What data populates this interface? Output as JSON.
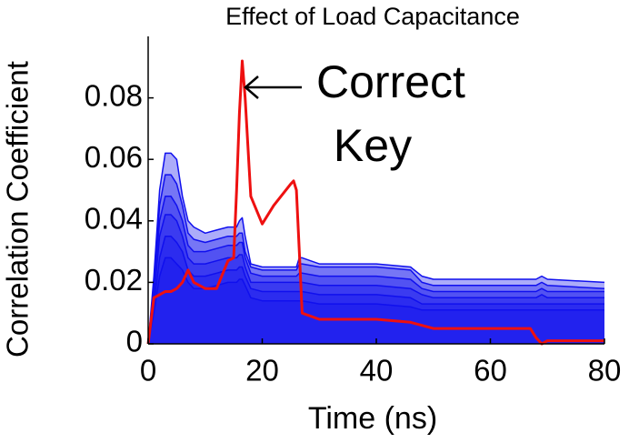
{
  "chart_data": {
    "type": "line",
    "title": "Effect of Load Capacitance",
    "x_label": "Time (ns)",
    "y_label": "Correlation Coefficient",
    "annotation": [
      "Correct",
      "Key"
    ],
    "x": [
      0,
      1,
      2,
      3,
      4,
      5,
      6,
      7,
      8,
      10,
      12,
      14,
      15,
      15.5,
      16,
      16.5,
      17,
      18,
      20,
      22,
      25,
      25.5,
      26,
      26.5,
      27,
      30,
      40,
      46,
      48,
      50,
      60,
      67,
      68,
      69,
      70,
      80
    ],
    "fill_under": true,
    "series": [
      {
        "color": "#1010ee",
        "values": [
          0,
          0.022,
          0.05,
          0.062,
          0.062,
          0.06,
          0.048,
          0.04,
          0.038,
          0.036,
          0.037,
          0.038,
          0.038,
          0.038,
          0.04,
          0.041,
          0.035,
          0.026,
          0.025,
          0.025,
          0.025,
          0.025,
          0.025,
          0.028,
          0.028,
          0.026,
          0.026,
          0.025,
          0.022,
          0.021,
          0.021,
          0.021,
          0.021,
          0.022,
          0.021,
          0.02
        ]
      },
      {
        "color": "#1010ee",
        "values": [
          0,
          0.02,
          0.045,
          0.055,
          0.055,
          0.052,
          0.045,
          0.036,
          0.034,
          0.033,
          0.034,
          0.035,
          0.035,
          0.035,
          0.036,
          0.036,
          0.03,
          0.025,
          0.024,
          0.024,
          0.024,
          0.024,
          0.024,
          0.026,
          0.026,
          0.025,
          0.025,
          0.024,
          0.02,
          0.019,
          0.019,
          0.019,
          0.019,
          0.02,
          0.019,
          0.018
        ]
      },
      {
        "color": "#1010ee",
        "values": [
          0,
          0.018,
          0.04,
          0.048,
          0.048,
          0.045,
          0.04,
          0.032,
          0.03,
          0.03,
          0.031,
          0.032,
          0.032,
          0.032,
          0.033,
          0.033,
          0.028,
          0.023,
          0.022,
          0.022,
          0.022,
          0.022,
          0.022,
          0.023,
          0.023,
          0.022,
          0.022,
          0.021,
          0.018,
          0.017,
          0.017,
          0.017,
          0.017,
          0.018,
          0.017,
          0.017
        ]
      },
      {
        "color": "#1010ee",
        "values": [
          0,
          0.015,
          0.035,
          0.042,
          0.042,
          0.04,
          0.035,
          0.028,
          0.026,
          0.026,
          0.027,
          0.028,
          0.028,
          0.028,
          0.029,
          0.029,
          0.025,
          0.02,
          0.02,
          0.02,
          0.02,
          0.02,
          0.02,
          0.02,
          0.02,
          0.019,
          0.019,
          0.018,
          0.016,
          0.015,
          0.015,
          0.015,
          0.015,
          0.016,
          0.015,
          0.015
        ]
      },
      {
        "color": "#1010ee",
        "values": [
          0,
          0.012,
          0.028,
          0.035,
          0.035,
          0.033,
          0.03,
          0.024,
          0.022,
          0.022,
          0.023,
          0.024,
          0.024,
          0.024,
          0.025,
          0.025,
          0.022,
          0.018,
          0.017,
          0.017,
          0.017,
          0.017,
          0.017,
          0.017,
          0.017,
          0.016,
          0.016,
          0.015,
          0.013,
          0.013,
          0.013,
          0.013,
          0.013,
          0.013,
          0.013,
          0.013
        ]
      },
      {
        "color": "#1010ee",
        "values": [
          0,
          0.01,
          0.022,
          0.028,
          0.028,
          0.026,
          0.024,
          0.02,
          0.018,
          0.018,
          0.019,
          0.02,
          0.02,
          0.02,
          0.021,
          0.021,
          0.019,
          0.015,
          0.014,
          0.014,
          0.014,
          0.014,
          0.014,
          0.014,
          0.014,
          0.013,
          0.013,
          0.012,
          0.011,
          0.011,
          0.011,
          0.011,
          0.011,
          0.011,
          0.011,
          0.011
        ]
      },
      {
        "color": "#ee1010",
        "values": [
          0,
          0.015,
          0.016,
          0.017,
          0.017,
          0.018,
          0.02,
          0.024,
          0.02,
          0.018,
          0.018,
          0.027,
          0.028,
          0.05,
          0.075,
          0.092,
          0.08,
          0.048,
          0.039,
          0.045,
          0.052,
          0.053,
          0.05,
          0.03,
          0.01,
          0.008,
          0.008,
          0.007,
          0.006,
          0.005,
          0.005,
          0.005,
          0.002,
          0,
          0.001,
          0.001
        ]
      }
    ],
    "xlim": [
      0,
      80
    ],
    "xticks": [
      0,
      20,
      40,
      60,
      80
    ],
    "ylim": [
      0,
      0.1
    ],
    "yticks": [
      0,
      0.02,
      0.04,
      0.06,
      0.08
    ]
  }
}
